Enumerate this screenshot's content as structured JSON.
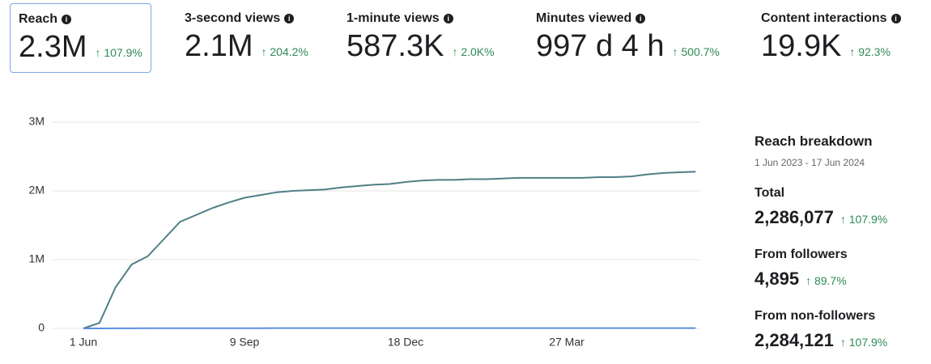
{
  "metrics": [
    {
      "label": "Reach",
      "value": "2.3M",
      "change": "↑ 107.9%"
    },
    {
      "label": "3-second views",
      "value": "2.1M",
      "change": "↑ 204.2%"
    },
    {
      "label": "1-minute views",
      "value": "587.3K",
      "change": "↑ 2.0K%"
    },
    {
      "label": "Minutes viewed",
      "value": "997 d 4 h",
      "change": "↑ 500.7%"
    },
    {
      "label": "Content interactions",
      "value": "19.9K",
      "change": "↑ 92.3%"
    }
  ],
  "chart_data": {
    "type": "line",
    "categories": [
      "1 Jun",
      null,
      null,
      null,
      null,
      null,
      null,
      null,
      null,
      null,
      "9 Sep",
      null,
      null,
      null,
      null,
      null,
      null,
      null,
      null,
      null,
      "18 Dec",
      null,
      null,
      null,
      null,
      null,
      null,
      null,
      null,
      null,
      "27 Mar",
      null,
      null,
      null,
      null,
      null,
      null,
      null,
      null
    ],
    "series": [
      {
        "color": "#4f7f86",
        "values": [
          0,
          80000,
          600000,
          930000,
          1050000,
          1300000,
          1550000,
          1650000,
          1750000,
          1830000,
          1900000,
          1940000,
          1980000,
          2000000,
          2010000,
          2020000,
          2050000,
          2070000,
          2090000,
          2100000,
          2130000,
          2150000,
          2160000,
          2160000,
          2170000,
          2170000,
          2180000,
          2190000,
          2190000,
          2190000,
          2190000,
          2190000,
          2200000,
          2200000,
          2210000,
          2240000,
          2260000,
          2270000,
          2280000
        ]
      },
      {
        "color": "#5b8fe0",
        "values": [
          0,
          100,
          1300,
          2000,
          2300,
          2600,
          2900,
          3100,
          3300,
          3400,
          3500,
          3600,
          3700,
          3800,
          3850,
          3900,
          3950,
          4000,
          4050,
          4100,
          4150,
          4200,
          4250,
          4300,
          4350,
          4400,
          4450,
          4500,
          4550,
          4600,
          4650,
          4700,
          4720,
          4740,
          4760,
          4800,
          4840,
          4870,
          4890
        ]
      }
    ],
    "ylim": [
      0,
      3000000
    ],
    "yticks": [
      0,
      {
        "value": 1000000,
        "label": "1M"
      },
      {
        "value": 2000000,
        "label": "2M"
      },
      {
        "value": 3000000,
        "label": "3M"
      }
    ],
    "grid": true
  },
  "breakdown": {
    "title": "Reach breakdown",
    "range": "1 Jun 2023 - 17 Jun 2024",
    "items": [
      {
        "label": "Total",
        "value": "2,286,077",
        "change": "↑ 107.9%"
      },
      {
        "label": "From followers",
        "value": "4,895",
        "change": "↑ 89.7%"
      },
      {
        "label": "From non-followers",
        "value": "2,284,121",
        "change": "↑ 107.9%"
      }
    ]
  }
}
